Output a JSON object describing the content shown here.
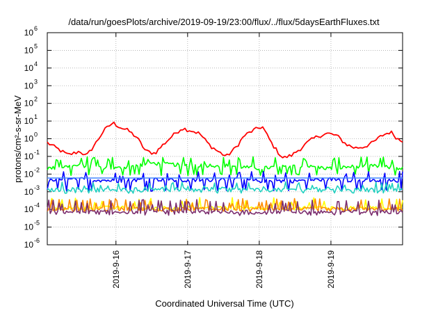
{
  "chart_data": {
    "type": "line",
    "title": "/data/run/goesPlots/archive/2019-09-19/23:00/flux/../flux/5daysEarthFluxes.txt",
    "xlabel": "Coordinated Universal Time (UTC)",
    "ylabel": "protons/cm²-s-sr-MeV",
    "y_scale": "log",
    "ylim": [
      1e-06,
      1000000.0
    ],
    "y_ticks": [
      {
        "base": "10",
        "exp": "-6"
      },
      {
        "base": "10",
        "exp": "-5"
      },
      {
        "base": "10",
        "exp": "-4"
      },
      {
        "base": "10",
        "exp": "-3"
      },
      {
        "base": "10",
        "exp": "-2"
      },
      {
        "base": "10",
        "exp": "-1"
      },
      {
        "base": "10",
        "exp": "0"
      },
      {
        "base": "10",
        "exp": "1"
      },
      {
        "base": "10",
        "exp": "2"
      },
      {
        "base": "10",
        "exp": "3"
      },
      {
        "base": "10",
        "exp": "4"
      },
      {
        "base": "10",
        "exp": "5"
      },
      {
        "base": "10",
        "exp": "6"
      }
    ],
    "x_start": "2019-09-15 01:00",
    "x_end": "2019-09-20 00:00",
    "x_ticks": [
      "2019-9-16",
      "2019-9-17",
      "2019-9-18",
      "2019-9-19"
    ],
    "grid": true,
    "series": [
      {
        "color": "#ff0000",
        "x": [
          "2019-09-15 01:00",
          "2019-09-15 04:00",
          "2019-09-15 08:00",
          "2019-09-15 12:00",
          "2019-09-15 14:00",
          "2019-09-15 17:00",
          "2019-09-15 20:00",
          "2019-09-15 23:00",
          "2019-09-16 02:00",
          "2019-09-16 04:00",
          "2019-09-16 07:00",
          "2019-09-16 10:00",
          "2019-09-16 13:00",
          "2019-09-16 16:00",
          "2019-09-16 19:00",
          "2019-09-16 22:00",
          "2019-09-17 01:00",
          "2019-09-17 04:00",
          "2019-09-17 07:00",
          "2019-09-17 10:00",
          "2019-09-17 13:00",
          "2019-09-17 16:00",
          "2019-09-17 19:00",
          "2019-09-17 22:00",
          "2019-09-18 01:00",
          "2019-09-18 04:00",
          "2019-09-18 06:00",
          "2019-09-18 08:00",
          "2019-09-18 11:00",
          "2019-09-18 14:00",
          "2019-09-18 17:00",
          "2019-09-18 20:00",
          "2019-09-18 23:00",
          "2019-09-19 02:00",
          "2019-09-19 05:00",
          "2019-09-19 08:00",
          "2019-09-19 11:00",
          "2019-09-19 14:00",
          "2019-09-19 17:00",
          "2019-09-19 20:00",
          "2019-09-19 23:00"
        ],
        "values": [
          0.6,
          0.3,
          0.12,
          0.2,
          0.1,
          0.5,
          3,
          8,
          4,
          3,
          1.2,
          0.2,
          0.15,
          0.5,
          1.5,
          4,
          3,
          2,
          0.5,
          0.2,
          0.1,
          0.3,
          1.5,
          3,
          5,
          0.6,
          0.2,
          0.08,
          0.12,
          0.3,
          0.8,
          1.5,
          2,
          1.5,
          0.5,
          0.3,
          0.35,
          0.6,
          1.5,
          2.5,
          0.8
        ]
      },
      {
        "color": "#00ff00",
        "x": [
          "2019-09-15 01:00",
          "2019-09-15 12:00",
          "2019-09-16 00:00",
          "2019-09-16 12:00",
          "2019-09-17 00:00",
          "2019-09-17 12:00",
          "2019-09-18 00:00",
          "2019-09-18 12:00",
          "2019-09-19 00:00",
          "2019-09-19 12:00",
          "2019-09-20 00:00"
        ],
        "values": [
          0.02,
          0.03,
          0.02,
          0.04,
          0.03,
          0.03,
          0.02,
          0.03,
          0.02,
          0.03,
          0.02
        ],
        "spikes": 0.08,
        "floor": 0.009
      },
      {
        "color": "#0000ff",
        "x": [
          "2019-09-15 01:00",
          "2019-09-15 12:00",
          "2019-09-16 00:00",
          "2019-09-16 12:00",
          "2019-09-17 00:00",
          "2019-09-17 12:00",
          "2019-09-18 00:00",
          "2019-09-18 12:00",
          "2019-09-19 00:00",
          "2019-09-19 12:00",
          "2019-09-20 00:00"
        ],
        "values": [
          0.004,
          0.005,
          0.004,
          0.005,
          0.004,
          0.005,
          0.004,
          0.004,
          0.005,
          0.004,
          0.004
        ],
        "spikes": 0.012,
        "floor": 0.0012
      },
      {
        "color": "#4488ff",
        "x": [
          "2019-09-15 01:00",
          "2019-09-20 00:00"
        ],
        "values": [
          0.006,
          0.006
        ]
      },
      {
        "color": "#20d0c0",
        "x": [
          "2019-09-15 01:00",
          "2019-09-15 12:00",
          "2019-09-16 00:00",
          "2019-09-16 12:00",
          "2019-09-17 00:00",
          "2019-09-17 12:00",
          "2019-09-18 00:00",
          "2019-09-18 12:00",
          "2019-09-19 00:00",
          "2019-09-19 12:00",
          "2019-09-20 00:00"
        ],
        "values": [
          0.0012,
          0.0014,
          0.0012,
          0.0015,
          0.0013,
          0.0014,
          0.0012,
          0.0013,
          0.0014,
          0.0013,
          0.0012
        ],
        "spikes": 0.003,
        "floor": 0.0009
      },
      {
        "color": "#ffff00",
        "x": [
          "2019-09-15 01:00",
          "2019-09-20 00:00"
        ],
        "values": [
          0.00012,
          0.00012
        ],
        "spikes": 0.0004,
        "floor": 0.0001
      },
      {
        "color": "#ff8c00",
        "x": [
          "2019-09-15 01:00",
          "2019-09-20 00:00"
        ],
        "values": [
          0.0001,
          0.0001
        ],
        "spikes": 0.00035,
        "floor": 8e-05
      },
      {
        "color": "#7b2d6e",
        "x": [
          "2019-09-15 01:00",
          "2019-09-20 00:00"
        ],
        "values": [
          7e-05,
          7e-05
        ],
        "spikes": 0.0003,
        "floor": 5e-05
      }
    ]
  }
}
